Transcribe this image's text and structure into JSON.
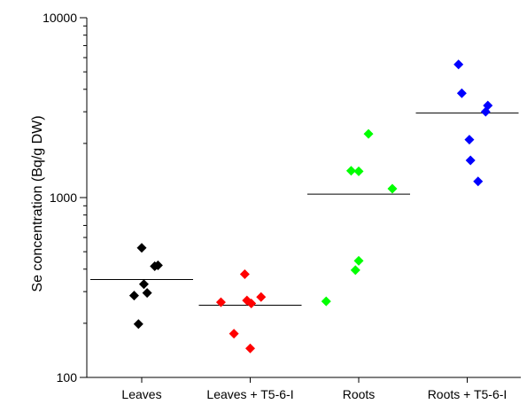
{
  "chart_data": {
    "type": "scatter",
    "ylabel": "Se concentration (Bq/g DW)",
    "xlabel": "",
    "y_scale": "log",
    "ylim": [
      100,
      10000
    ],
    "y_ticks": [
      {
        "value": 100,
        "label": "100"
      },
      {
        "value": 1000,
        "label": "1000"
      },
      {
        "value": 10000,
        "label": "10000"
      }
    ],
    "grid": false,
    "legend": "none",
    "marker": "diamond",
    "categories": [
      "Leaves",
      "Leaves + T5-6-I",
      "Roots",
      "Roots + T5-6-I"
    ],
    "series": [
      {
        "category": "Leaves",
        "color": "#000000",
        "points": [
          {
            "offset": 0.0,
            "value": 525
          },
          {
            "offset": 0.15,
            "value": 420
          },
          {
            "offset": 0.12,
            "value": 415
          },
          {
            "offset": 0.02,
            "value": 330
          },
          {
            "offset": 0.05,
            "value": 295
          },
          {
            "offset": -0.07,
            "value": 285
          },
          {
            "offset": -0.03,
            "value": 198
          }
        ],
        "mean": 350
      },
      {
        "category": "Leaves + T5-6-I",
        "color": "#ff0000",
        "points": [
          {
            "offset": -0.05,
            "value": 375
          },
          {
            "offset": 0.1,
            "value": 280
          },
          {
            "offset": -0.03,
            "value": 268
          },
          {
            "offset": -0.27,
            "value": 262
          },
          {
            "offset": 0.01,
            "value": 258
          },
          {
            "offset": -0.15,
            "value": 175
          },
          {
            "offset": 0.0,
            "value": 145
          }
        ],
        "mean": 252
      },
      {
        "category": "Roots",
        "color": "#00ff00",
        "points": [
          {
            "offset": 0.09,
            "value": 2260
          },
          {
            "offset": -0.07,
            "value": 1410
          },
          {
            "offset": 0.0,
            "value": 1400
          },
          {
            "offset": 0.31,
            "value": 1120
          },
          {
            "offset": 0.0,
            "value": 445
          },
          {
            "offset": -0.03,
            "value": 395
          },
          {
            "offset": -0.3,
            "value": 265
          }
        ],
        "mean": 1045
      },
      {
        "category": "Roots + T5-6-I",
        "color": "#0000ff",
        "points": [
          {
            "offset": -0.08,
            "value": 5500
          },
          {
            "offset": -0.05,
            "value": 3800
          },
          {
            "offset": 0.19,
            "value": 3250
          },
          {
            "offset": 0.17,
            "value": 3000
          },
          {
            "offset": 0.02,
            "value": 2100
          },
          {
            "offset": 0.03,
            "value": 1610
          },
          {
            "offset": 0.1,
            "value": 1230
          }
        ],
        "mean": 2950
      }
    ]
  }
}
